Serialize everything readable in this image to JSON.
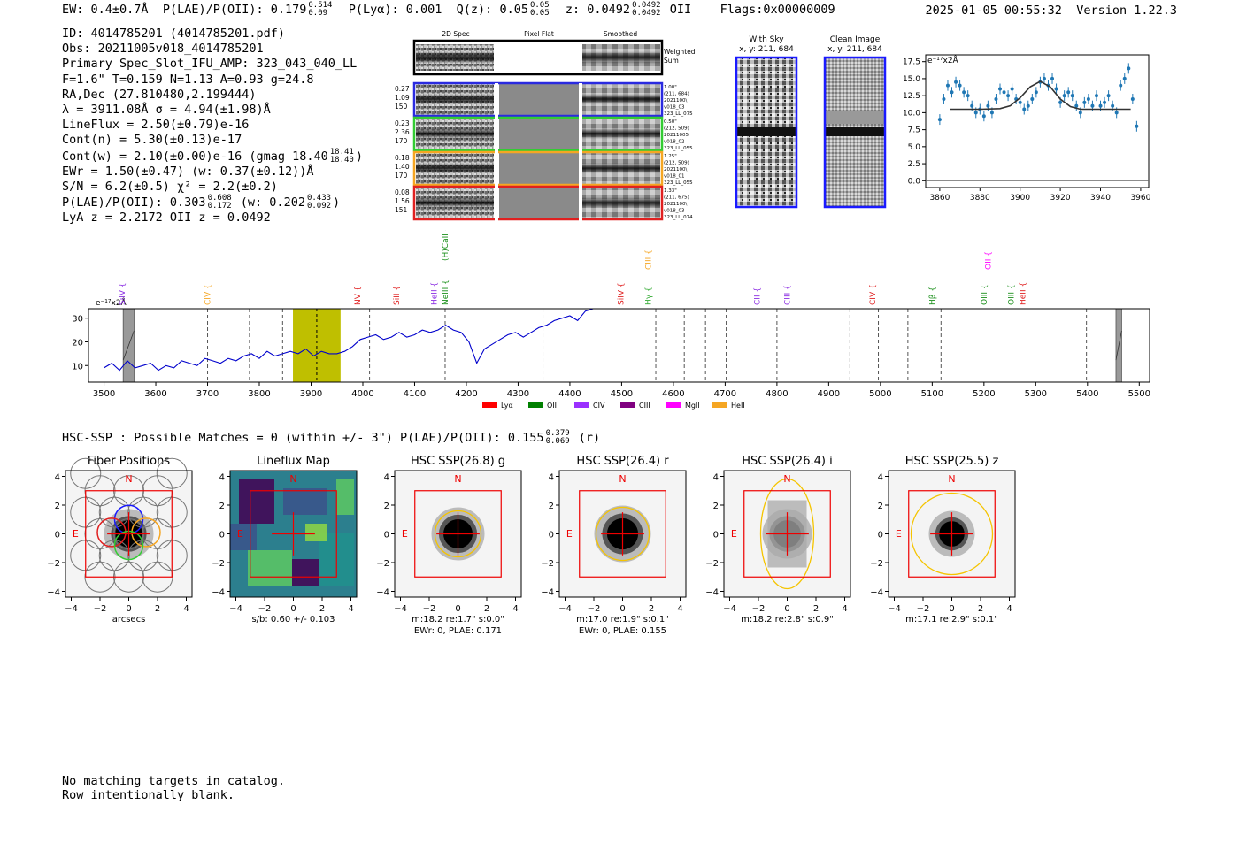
{
  "header": {
    "ew": "EW: 0.4±0.7Å",
    "plae_label": "P(LAE)/P(OII): 0.179",
    "plae_hi": "0.514",
    "plae_lo": "0.09",
    "plya": "P(Lyα): 0.001",
    "qz_label": "Q(z): 0.05",
    "qz_hi": "0.05",
    "qz_lo": "0.05",
    "z_label": "z: 0.0492",
    "z_hi": "0.0492",
    "z_lo": "0.0492",
    "z_line": "OII",
    "flags": "Flags:0x00000009",
    "datetime": "2025-01-05 00:55:32",
    "version": "Version 1.22.3"
  },
  "info": {
    "id": "ID: 4014785201 (4014785201.pdf)",
    "obs": "Obs: 20211005v018_4014785201",
    "primary": "Primary Spec_Slot_IFU_AMP: 323_043_040_LL",
    "fparams": "F=1.6\"  T=0.159  N=1.13  A=0.93  g=24.8",
    "radec": "RA,Dec (27.810480,2.199444)",
    "lambda": "λ = 3911.08Å  σ = 4.94(±1.98)Å",
    "lineflux": "LineFlux = 2.50(±0.79)e-16",
    "contn": "Cont(n) = 5.30(±0.13)e-17",
    "contw_label": "Cont(w) = 2.10(±0.00)e-16 (gmag 18.40",
    "contw_hi": "18.41",
    "contw_lo": "18.40",
    "ewr": "EWr = 1.50(±0.47) (w: 0.37(±0.12))Å",
    "sn": "S/N = 6.2(±0.5)  χ² = 2.2(±0.2)",
    "plae_label": "P(LAE)/P(OII): 0.303",
    "plae_hi": "0.608",
    "plae_lo": "0.172",
    "plae_w": "(w: 0.202",
    "plae_w_hi": "0.433",
    "plae_w_lo": "0.092",
    "lya": "LyA z = 2.2172  OII z = 0.0492"
  },
  "cutouts": {
    "col_2d": "2D Spec",
    "col_flat": "Pixel Flat",
    "col_smooth": "Smoothed",
    "weighted": "Weighted Sum",
    "rows": [
      {
        "left": [
          "0.27",
          "1.09",
          "150"
        ],
        "right": [
          "1.00\"",
          "(211, 684)",
          "2021100\\",
          "v018_03",
          "323_LL_075"
        ],
        "color": "#2a2ae0"
      },
      {
        "left": [
          "0.23",
          "2.36",
          "170"
        ],
        "right": [
          "0.50\"",
          "(212, 509)",
          "20211005",
          "v018_02",
          "323_LL_055"
        ],
        "color": "#33cc33"
      },
      {
        "left": [
          "0.18",
          "1.40",
          "170"
        ],
        "right": [
          "1.25\"",
          "(212, 509)",
          "2021100\\",
          "v018_01",
          "323_LL_055"
        ],
        "color": "#f5a623"
      },
      {
        "left": [
          "0.08",
          "1.56",
          "151"
        ],
        "right": [
          "1.33\"",
          "(211, 675)",
          "2021100\\",
          "v018_03",
          "323_LL_074"
        ],
        "color": "#e02020"
      }
    ],
    "with_sky_title": "With Sky",
    "with_sky_xy": "x, y: 211, 684",
    "clean_title": "Clean Image",
    "clean_xy": "x, y: 211, 684"
  },
  "zoom_chart": {
    "unit_label": "e⁻¹⁷x2Å",
    "y_ticks": [
      "17.5",
      "15.0",
      "12.5",
      "10.0",
      "7.5",
      "5.0",
      "2.5",
      "0.0"
    ],
    "x_ticks": [
      "3860",
      "3880",
      "3900",
      "3920",
      "3940",
      "3960"
    ]
  },
  "chart_data": {
    "type": "line",
    "title": "",
    "xlabel": "",
    "ylabel": "e⁻¹⁷x2Å",
    "xlim": [
      3470,
      5520
    ],
    "ylim": [
      3,
      34
    ],
    "x_ticks": [
      3500,
      3600,
      3700,
      3800,
      3900,
      4000,
      4100,
      4200,
      4300,
      4400,
      4500,
      4600,
      4700,
      4800,
      4900,
      5000,
      5100,
      5200,
      5300,
      5400,
      5500
    ],
    "y_ticks": [
      10,
      20,
      30
    ],
    "highlight_band": [
      3865,
      3957
    ],
    "emission_line_marker": 3911,
    "dashed_lines": [
      3700,
      3781,
      3845,
      4013,
      4159,
      4348,
      4566,
      4621,
      4662,
      4702,
      4800,
      4941,
      4996,
      5053,
      5117,
      5398
    ],
    "gray_blocks": [
      [
        3537,
        3558
      ],
      [
        5455,
        5466
      ]
    ],
    "series": [
      {
        "name": "spectrum",
        "color": "#0000cc",
        "x": [
          3500,
          3515,
          3530,
          3545,
          3560,
          3575,
          3590,
          3605,
          3620,
          3635,
          3650,
          3665,
          3680,
          3695,
          3710,
          3725,
          3740,
          3755,
          3770,
          3785,
          3800,
          3815,
          3830,
          3845,
          3860,
          3875,
          3890,
          3905,
          3920,
          3935,
          3950,
          3965,
          3980,
          3995,
          4010,
          4025,
          4040,
          4055,
          4070,
          4085,
          4100,
          4115,
          4130,
          4145,
          4160,
          4175,
          4190,
          4205,
          4220,
          4235,
          4250,
          4265,
          4280,
          4295,
          4310,
          4325,
          4340,
          4355,
          4370,
          4385,
          4400,
          4415,
          4430,
          4445,
          4460
        ],
        "values": [
          9,
          11,
          8,
          12,
          9,
          10,
          11,
          8,
          10,
          9,
          12,
          11,
          10,
          13,
          12,
          11,
          13,
          12,
          14,
          15,
          13,
          16,
          14,
          15,
          16,
          15,
          17,
          14,
          16,
          15,
          15,
          16,
          18,
          21,
          22,
          23,
          21,
          22,
          24,
          22,
          23,
          25,
          24,
          25,
          27,
          25,
          24,
          20,
          11,
          17,
          19,
          21,
          23,
          24,
          22,
          24,
          26,
          27,
          29,
          30,
          31,
          29,
          33,
          34,
          34
        ]
      }
    ],
    "line_labels": [
      {
        "name": "SiIV",
        "x": 3535,
        "color": "#8a2be2",
        "tier": "low"
      },
      {
        "name": "CIV",
        "x": 3700,
        "color": "#f5a623",
        "tier": "low"
      },
      {
        "name": "NV",
        "x": 3990,
        "color": "#e02020",
        "tier": "low"
      },
      {
        "name": "SiII",
        "x": 4065,
        "color": "#e02020",
        "tier": "low"
      },
      {
        "name": "HeII",
        "x": 4138,
        "color": "#8a2be2",
        "tier": "low"
      },
      {
        "name": "NeIII",
        "x": 4159,
        "color": "#1a8f1a",
        "tier": "low"
      },
      {
        "name": "(H)CaII",
        "x": 4159,
        "color": "#1a8f1a",
        "tier": "high"
      },
      {
        "name": "SiIV",
        "x": 4498,
        "color": "#e02020",
        "tier": "low"
      },
      {
        "name": "Hγ",
        "x": 4551,
        "color": "#33aa33",
        "tier": "low"
      },
      {
        "name": "CIII",
        "x": 4551,
        "color": "#f5a623",
        "tier": "mid"
      },
      {
        "name": "CII",
        "x": 4762,
        "color": "#8a2be2",
        "tier": "low"
      },
      {
        "name": "CIII",
        "x": 4820,
        "color": "#8a2be2",
        "tier": "low"
      },
      {
        "name": "CIV",
        "x": 4985,
        "color": "#e02020",
        "tier": "low"
      },
      {
        "name": "Hβ",
        "x": 5100,
        "color": "#1a8f1a",
        "tier": "low"
      },
      {
        "name": "OIII",
        "x": 5200,
        "color": "#1a8f1a",
        "tier": "low"
      },
      {
        "name": "OII",
        "x": 5208,
        "color": "#ff00ff",
        "tier": "high2"
      },
      {
        "name": "OIII",
        "x": 5252,
        "color": "#1a8f1a",
        "tier": "low"
      },
      {
        "name": "HeII",
        "x": 5275,
        "color": "#e02020",
        "tier": "low"
      }
    ],
    "legend": [
      {
        "label": "Lyα",
        "color": "#ff0000"
      },
      {
        "label": "OII",
        "color": "#008000"
      },
      {
        "label": "CIV",
        "color": "#9b30ff"
      },
      {
        "label": "CIII",
        "color": "#800080"
      },
      {
        "label": "MgII",
        "color": "#ff00ff"
      },
      {
        "label": "HeII",
        "color": "#f5a623"
      }
    ],
    "zoom": {
      "xlim": [
        3853,
        3964
      ],
      "ylim": [
        -1,
        18.5
      ],
      "model_x": [
        3865,
        3880,
        3890,
        3895,
        3900,
        3905,
        3910,
        3915,
        3920,
        3925,
        3930,
        3940,
        3955
      ],
      "model_y": [
        10.5,
        10.5,
        10.6,
        11,
        12.2,
        13.8,
        14.6,
        13.8,
        12,
        10.9,
        10.5,
        10.5,
        10.5
      ],
      "points_x": [
        3860,
        3862,
        3864,
        3866,
        3868,
        3870,
        3872,
        3874,
        3876,
        3878,
        3880,
        3882,
        3884,
        3886,
        3888,
        3890,
        3892,
        3894,
        3896,
        3898,
        3900,
        3902,
        3904,
        3906,
        3908,
        3910,
        3912,
        3914,
        3916,
        3918,
        3920,
        3922,
        3924,
        3926,
        3928,
        3930,
        3932,
        3934,
        3936,
        3938,
        3940,
        3942,
        3944,
        3946,
        3948,
        3950,
        3952,
        3954,
        3956,
        3958
      ],
      "points_y": [
        9,
        12,
        14,
        13,
        14.5,
        14,
        13,
        12.5,
        11,
        10,
        10.5,
        9.5,
        11,
        10,
        12,
        13.5,
        13,
        12.5,
        13.5,
        12,
        11.5,
        10.5,
        11,
        12,
        13,
        14.5,
        15,
        14,
        15,
        13.5,
        11.5,
        12.5,
        13,
        12.5,
        11,
        10,
        11.5,
        12,
        11,
        12.5,
        11,
        11.5,
        12.5,
        11,
        10,
        14,
        15,
        16.5,
        12,
        8
      ]
    }
  },
  "hsc": {
    "title_label": "HSC-SSP : Possible Matches = 0 (within +/- 3\")  P(LAE)/P(OII): 0.155",
    "title_hi": "0.379",
    "title_lo": "0.069",
    "title_band": "(r)",
    "panels": [
      {
        "title": "Fiber Positions",
        "caption1": "arcsecs",
        "caption2": ""
      },
      {
        "title": "Lineflux Map",
        "caption1": "s/b: 0.60 +/- 0.103",
        "caption2": ""
      },
      {
        "title": "HSC SSP(26.8) g",
        "caption1": "m:18.2  re:1.7\"  s:0.0\"",
        "caption2": "EWr: 0, PLAE: 0.171"
      },
      {
        "title": "HSC SSP(26.4) r",
        "caption1": "m:17.0  re:1.9\"  s:0.1\"",
        "caption2": "EWr: 0, PLAE: 0.155"
      },
      {
        "title": "HSC SSP(26.4) i",
        "caption1": "m:18.2  re:2.8\"  s:0.9\"",
        "caption2": ""
      },
      {
        "title": "HSC SSP(25.5) z",
        "caption1": "m:17.1  re:2.9\"  s:0.1\"",
        "caption2": ""
      }
    ],
    "axis_ticks": [
      "4",
      "2",
      "0",
      "−2",
      "−4"
    ],
    "x_ticks": [
      "−4",
      "−2",
      "0",
      "2",
      "4"
    ],
    "n_label": "N",
    "e_label": "E"
  },
  "footer": {
    "line1": "No matching targets in catalog.",
    "line2": "Row intentionally blank."
  }
}
